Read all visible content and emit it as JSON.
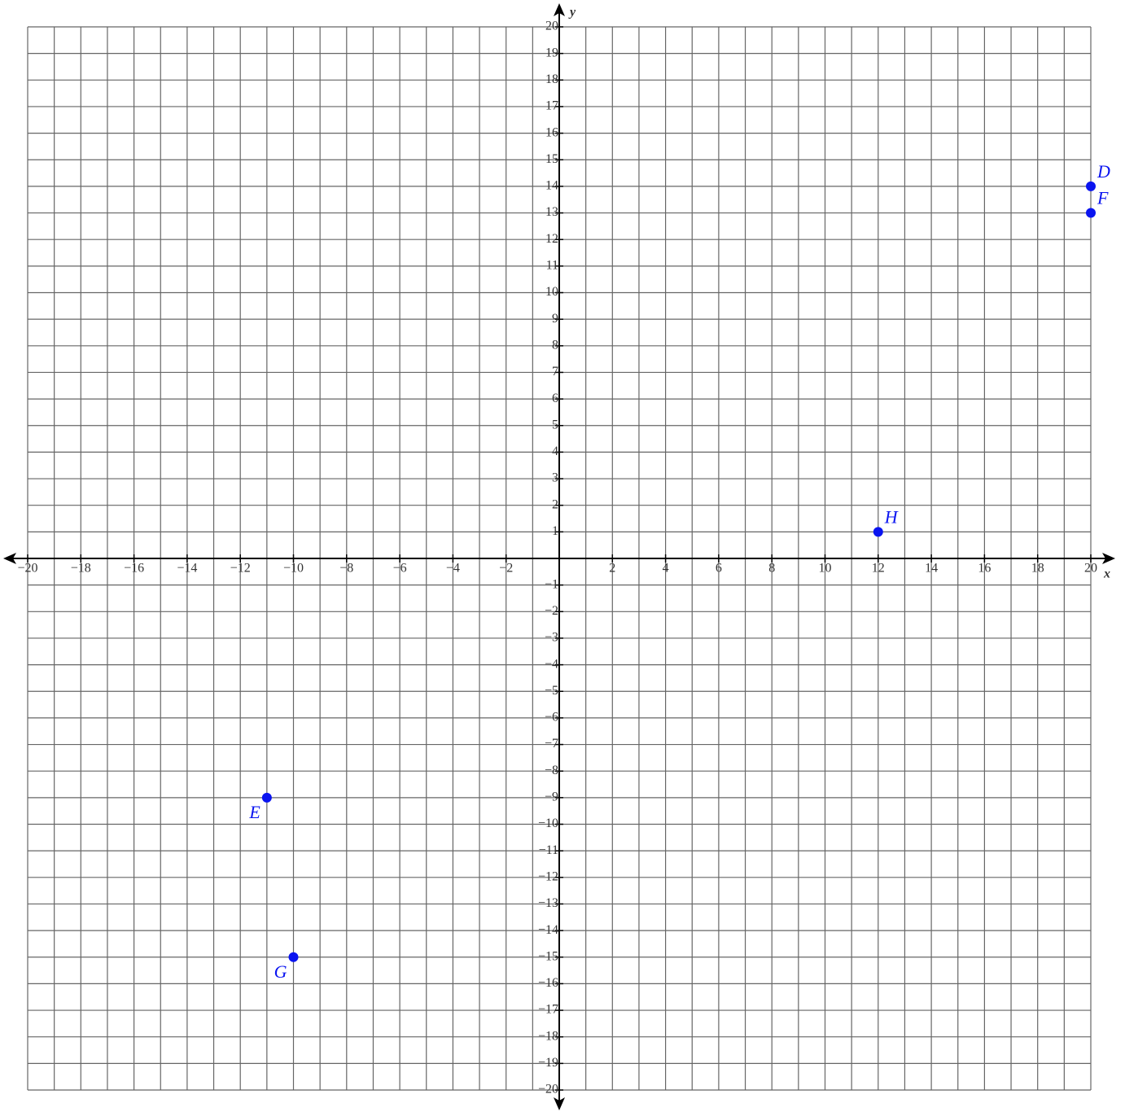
{
  "chart_data": {
    "type": "scatter",
    "xlabel": "x",
    "ylabel": "y",
    "xlim": [
      -20,
      20
    ],
    "ylim": [
      -20,
      20
    ],
    "xticks": [
      {
        "value": -20,
        "label": "−20"
      },
      {
        "value": -18,
        "label": "−18"
      },
      {
        "value": -16,
        "label": "−16"
      },
      {
        "value": -14,
        "label": "−14"
      },
      {
        "value": -12,
        "label": "−12"
      },
      {
        "value": -10,
        "label": "−10"
      },
      {
        "value": -8,
        "label": "−8"
      },
      {
        "value": -6,
        "label": "−6"
      },
      {
        "value": -4,
        "label": "−4"
      },
      {
        "value": -2,
        "label": "−2"
      },
      2,
      4,
      6,
      8,
      10,
      12,
      14,
      16,
      18,
      20
    ],
    "yticks": [
      {
        "value": -20,
        "label": "−20"
      },
      {
        "value": -19,
        "label": "−19"
      },
      {
        "value": -18,
        "label": "−18"
      },
      {
        "value": -17,
        "label": "−17"
      },
      {
        "value": -16,
        "label": "−16"
      },
      {
        "value": -15,
        "label": "−15"
      },
      {
        "value": -14,
        "label": "−14"
      },
      {
        "value": -13,
        "label": "−13"
      },
      {
        "value": -12,
        "label": "−12"
      },
      {
        "value": -11,
        "label": "−11"
      },
      {
        "value": -10,
        "label": "−10"
      },
      {
        "value": -9,
        "label": "−9"
      },
      {
        "value": -8,
        "label": "−8"
      },
      {
        "value": -7,
        "label": "−7"
      },
      {
        "value": -6,
        "label": "−6"
      },
      {
        "value": -5,
        "label": "−5"
      },
      {
        "value": -4,
        "label": "−4"
      },
      {
        "value": -3,
        "label": "−3"
      },
      {
        "value": -2,
        "label": "−2"
      },
      {
        "value": -1,
        "label": "−1"
      },
      1,
      2,
      3,
      4,
      5,
      6,
      7,
      8,
      9,
      10,
      11,
      12,
      13,
      14,
      15,
      16,
      17,
      18,
      19,
      20
    ],
    "xgrid": [
      -20,
      -19,
      -18,
      -17,
      -16,
      -15,
      -14,
      -13,
      -12,
      -11,
      -10,
      -9,
      -8,
      -7,
      -6,
      -5,
      -4,
      -3,
      -2,
      -1,
      0,
      1,
      2,
      3,
      4,
      5,
      6,
      7,
      8,
      9,
      10,
      11,
      12,
      13,
      14,
      15,
      16,
      17,
      18,
      19,
      20
    ],
    "ygrid": [
      -20,
      -19,
      -18,
      -17,
      -16,
      -15,
      -14,
      -13,
      -12,
      -11,
      -10,
      -9,
      -8,
      -7,
      -6,
      -5,
      -4,
      -3,
      -2,
      -1,
      0,
      1,
      2,
      3,
      4,
      5,
      6,
      7,
      8,
      9,
      10,
      11,
      12,
      13,
      14,
      15,
      16,
      17,
      18,
      19,
      20
    ],
    "grid": true,
    "color": "#0a14f0",
    "points": [
      {
        "label": "D",
        "x": 20,
        "y": 14
      },
      {
        "label": "F",
        "x": 20,
        "y": 13
      },
      {
        "label": "H",
        "x": 12,
        "y": 1
      },
      {
        "label": "E",
        "x": -11,
        "y": -9
      },
      {
        "label": "G",
        "x": -10,
        "y": -15
      }
    ]
  }
}
